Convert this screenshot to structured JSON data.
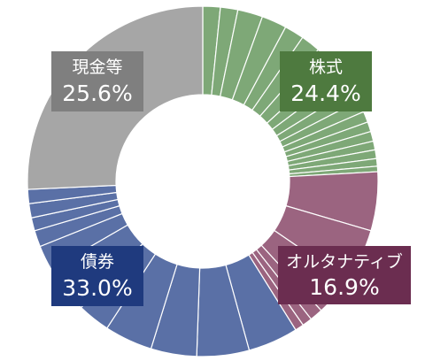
{
  "chart_data": {
    "type": "donut",
    "title": "",
    "series": [
      {
        "name": "株式",
        "value_label": "24.4%",
        "value": 24.4,
        "color": "#7ea877",
        "label_bg": "#4e7a3f",
        "sub_values": [
          1.6,
          1.6,
          2.3,
          2.3,
          1.8,
          1.8,
          1.8,
          1.5,
          1.4,
          1.2,
          1.1,
          1.0,
          0.9,
          0.9,
          0.8,
          0.8,
          0.7,
          0.5
        ]
      },
      {
        "name": "オルタナティブ",
        "value_label": "16.9%",
        "value": 16.9,
        "color": "#9b6480",
        "label_bg": "#6b2d50",
        "sub_values": [
          5.4,
          5.0,
          3.6,
          1.2,
          0.9,
          0.8
        ]
      },
      {
        "name": "債券",
        "value_label": "33.0%",
        "value": 33.0,
        "color": "#5a70a6",
        "label_bg": "#1f3a7e",
        "sub_values": [
          4.6,
          4.8,
          4.2,
          4.4,
          3.0,
          4.4,
          2.3,
          1.5,
          1.2,
          1.3,
          1.3
        ]
      },
      {
        "name": "現金等",
        "value_label": "25.6%",
        "value": 25.6,
        "color": "#a6a6a6",
        "label_bg": "#7f7f7f",
        "sub_values": [
          25.6
        ]
      }
    ]
  }
}
